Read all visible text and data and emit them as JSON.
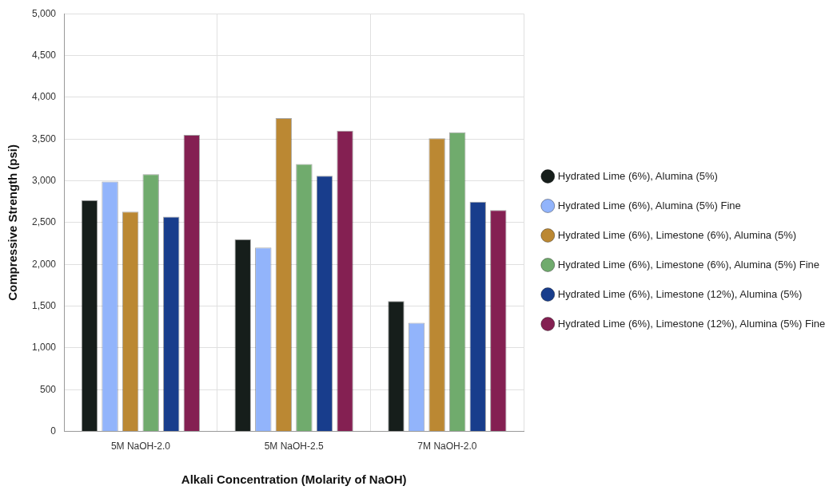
{
  "chart_data": {
    "type": "bar",
    "xlabel": "Alkali Concentration (Molarity of NaOH)",
    "ylabel": "Compressive Strength (psi)",
    "categories": [
      "5M NaOH-2.0",
      "5M NaOH-2.5",
      "7M NaOH-2.0"
    ],
    "series": [
      {
        "name": "Hydrated Lime (6%), Alumina (5%)",
        "color": "#161e1b",
        "values": [
          2770,
          2300,
          1560
        ]
      },
      {
        "name": "Hydrated Lime (6%), Alumina (5%) Fine",
        "color": "#92b4fb",
        "values": [
          2990,
          2200,
          1300
        ]
      },
      {
        "name": "Hydrated Lime (6%), Limestone (6%), Alumina (5%)",
        "color": "#bb8833",
        "values": [
          2630,
          3750,
          3510
        ]
      },
      {
        "name": "Hydrated Lime (6%), Limestone (6%), Alumina (5%) Fine",
        "color": "#70ab6d",
        "values": [
          3080,
          3200,
          3580
        ]
      },
      {
        "name": "Hydrated Lime (6%), Limestone (12%), Alumina (5%)",
        "color": "#183d8c",
        "values": [
          2570,
          3060,
          2750
        ]
      },
      {
        "name": "Hydrated Lime (6%), Limestone (12%), Alumina (5%) Fine",
        "color": "#842052",
        "values": [
          3550,
          3600,
          2650
        ]
      }
    ],
    "ylim": [
      0,
      5000
    ],
    "yticks": [
      {
        "value": 0,
        "label": "0"
      },
      {
        "value": 500,
        "label": "500"
      },
      {
        "value": 1000,
        "label": "1,000"
      },
      {
        "value": 1500,
        "label": "1,500"
      },
      {
        "value": 2000,
        "label": "2,000"
      },
      {
        "value": 2500,
        "label": "2,500"
      },
      {
        "value": 3000,
        "label": "3,000"
      },
      {
        "value": 3500,
        "label": "3,500"
      },
      {
        "value": 4000,
        "label": "4,000"
      },
      {
        "value": 4500,
        "label": "4,500"
      },
      {
        "value": 5000,
        "label": "5,000"
      }
    ],
    "grid": true,
    "legend": "right"
  }
}
